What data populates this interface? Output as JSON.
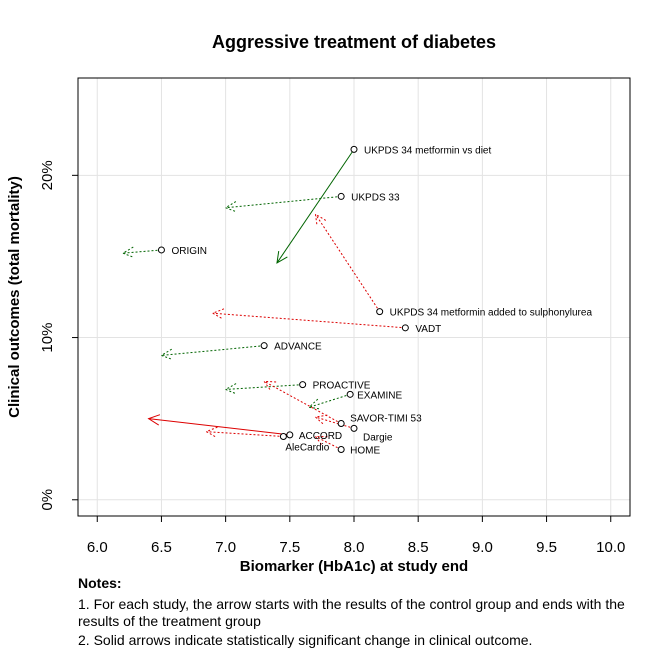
{
  "chart_data": {
    "type": "scatter",
    "title": "Aggressive treatment of diabetes",
    "xlabel": "Biomarker (HbA1c) at study end",
    "ylabel": "Clinical outcomes (total mortality)",
    "xlim": [
      5.85,
      10.15
    ],
    "ylim": [
      -0.01,
      0.26
    ],
    "x_ticks": [
      6.0,
      6.5,
      7.0,
      7.5,
      8.0,
      8.5,
      9.0,
      9.5,
      10.0
    ],
    "x_tick_labels": [
      "6.0",
      "6.5",
      "7.0",
      "7.5",
      "8.0",
      "8.5",
      "9.0",
      "9.5",
      "10.0"
    ],
    "y_ticks": [
      0,
      0.1,
      0.2
    ],
    "y_tick_labels": [
      "0%",
      "10%",
      "20%"
    ],
    "grid": true,
    "colors": {
      "significant": "#006400",
      "nonsignificant_green": "#006400",
      "red": "#dd0000",
      "marker": "#000000"
    },
    "studies": [
      {
        "name": "UKPDS 34 metformin vs diet",
        "control": [
          8.0,
          0.216
        ],
        "treatment": [
          7.4,
          0.146
        ],
        "color": "green",
        "significant": true
      },
      {
        "name": "UKPDS 33",
        "control": [
          7.9,
          0.187
        ],
        "treatment": [
          7.0,
          0.18
        ],
        "color": "green",
        "significant": false
      },
      {
        "name": "ORIGIN",
        "control": [
          6.5,
          0.154
        ],
        "treatment": [
          6.2,
          0.152
        ],
        "color": "green",
        "significant": false
      },
      {
        "name": "UKPDS 34 metformin added to sulphonylurea",
        "control": [
          8.2,
          0.116
        ],
        "treatment": [
          7.7,
          0.176
        ],
        "color": "red",
        "significant": false
      },
      {
        "name": "VADT",
        "control": [
          8.4,
          0.106
        ],
        "treatment": [
          6.9,
          0.115
        ],
        "color": "red",
        "significant": false
      },
      {
        "name": "ADVANCE",
        "control": [
          7.3,
          0.095
        ],
        "treatment": [
          6.5,
          0.089
        ],
        "color": "green",
        "significant": false
      },
      {
        "name": "PROACTIVE",
        "control": [
          7.6,
          0.071
        ],
        "treatment": [
          7.0,
          0.068
        ],
        "color": "green",
        "significant": false
      },
      {
        "name": "EXAMINE",
        "control": [
          7.97,
          0.065
        ],
        "treatment": [
          7.65,
          0.057
        ],
        "color": "green",
        "significant": false
      },
      {
        "name": "SAVOR-TIMI 53",
        "control": [
          7.9,
          0.047
        ],
        "treatment": [
          7.3,
          0.073
        ],
        "color": "red",
        "significant": false
      },
      {
        "name": "Dargie",
        "control": [
          8.0,
          0.044
        ],
        "treatment": [
          7.7,
          0.051
        ],
        "color": "red",
        "significant": false
      },
      {
        "name": "ACCORD",
        "control": [
          7.5,
          0.04
        ],
        "treatment": [
          6.4,
          0.05
        ],
        "color": "red",
        "significant": true
      },
      {
        "name": "AleCardio",
        "control": [
          7.45,
          0.039
        ],
        "treatment": [
          6.85,
          0.042
        ],
        "color": "red",
        "significant": false
      },
      {
        "name": "HOME",
        "control": [
          7.9,
          0.031
        ],
        "treatment": [
          7.7,
          0.039
        ],
        "color": "red",
        "significant": false
      }
    ]
  },
  "notes": {
    "header": "Notes:",
    "items": [
      "1. For each study, the arrow starts with the results of the control group and ends with the results of the treatment group",
      "2. Solid arrows indicate statistically significant change in clinical outcome."
    ]
  }
}
